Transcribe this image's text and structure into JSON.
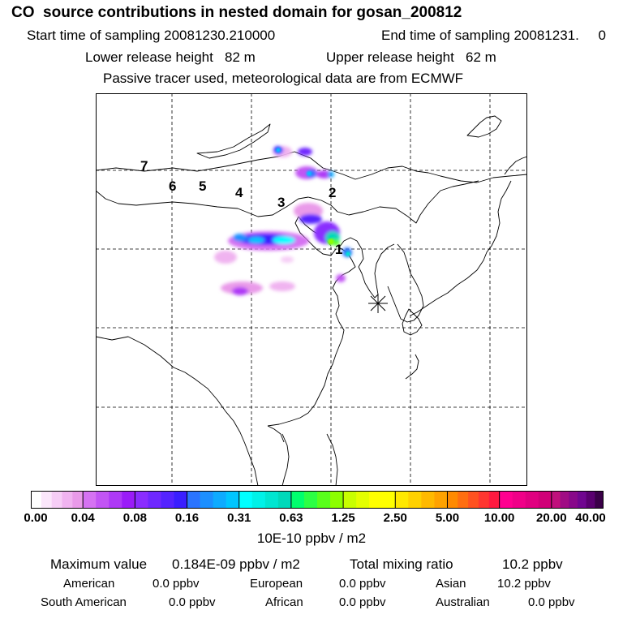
{
  "header": {
    "title": "CO  source contributions in nested domain for gosan_200812",
    "start_label": "Start time of sampling 20081230.210000",
    "end_label": "End time of sampling 20081231.     0",
    "lower_label": "Lower release height   82 m",
    "upper_label": "Upper release height   62 m",
    "note": "Passive tracer used, meteorological data are from ECMWF"
  },
  "map": {
    "height_labels": [
      "1",
      "2",
      "3",
      "4",
      "5",
      "6",
      "7"
    ],
    "receptor_icon": "asterisk-icon"
  },
  "colorbar": {
    "ticks": [
      "0.00",
      "0.04",
      "0.08",
      "0.16",
      "0.31",
      "0.63",
      "1.25",
      "2.50",
      "5.00",
      "10.00",
      "20.00",
      "40.00"
    ],
    "colors": [
      [
        "#ffffff",
        "#fbe6fb",
        "#f6cdf6",
        "#f0b3f0",
        "#e99ae9"
      ],
      [
        "#d572f2",
        "#c255f4",
        "#ae39f6",
        "#9a1cf8"
      ],
      [
        "#8a2dff",
        "#6f28ff",
        "#5523ff",
        "#3a1eff"
      ],
      [
        "#2b74ff",
        "#1c8fff",
        "#0eabff",
        "#00c6ff"
      ],
      [
        "#00ffff",
        "#00f2e8",
        "#00e6d1",
        "#00d9ba"
      ],
      [
        "#00ff6e",
        "#2cff44",
        "#58ff1b",
        "#8cff00"
      ],
      [
        "#c8ff00",
        "#e4ff00",
        "#ffff00",
        "#ffff00"
      ],
      [
        "#ffe800",
        "#ffd100",
        "#ffb900",
        "#ffa200"
      ],
      [
        "#ff8a00",
        "#ff6e10",
        "#ff5220",
        "#ff3630",
        "#ff1a40"
      ],
      [
        "#ff0090",
        "#f00088",
        "#e00080",
        "#d00078"
      ],
      [
        "#c0107c",
        "#a00c84",
        "#88088a",
        "#700690",
        "#5a0070",
        "#3a0048"
      ]
    ],
    "units": "10E-10 ppbv / m2"
  },
  "stats": {
    "max_label": "Maximum value",
    "max_value": "0.184E-09 ppbv / m2",
    "total_label": "Total mixing ratio",
    "total_value": "10.2 ppbv",
    "regions": [
      {
        "name": "American",
        "value": "0.0 ppbv"
      },
      {
        "name": "European",
        "value": "0.0 ppbv"
      },
      {
        "name": "Asian",
        "value": "10.2 ppbv"
      },
      {
        "name": "South American",
        "value": "0.0 ppbv"
      },
      {
        "name": "African",
        "value": "0.0 ppbv"
      },
      {
        "name": "Australian",
        "value": "0.0 ppbv"
      }
    ]
  }
}
